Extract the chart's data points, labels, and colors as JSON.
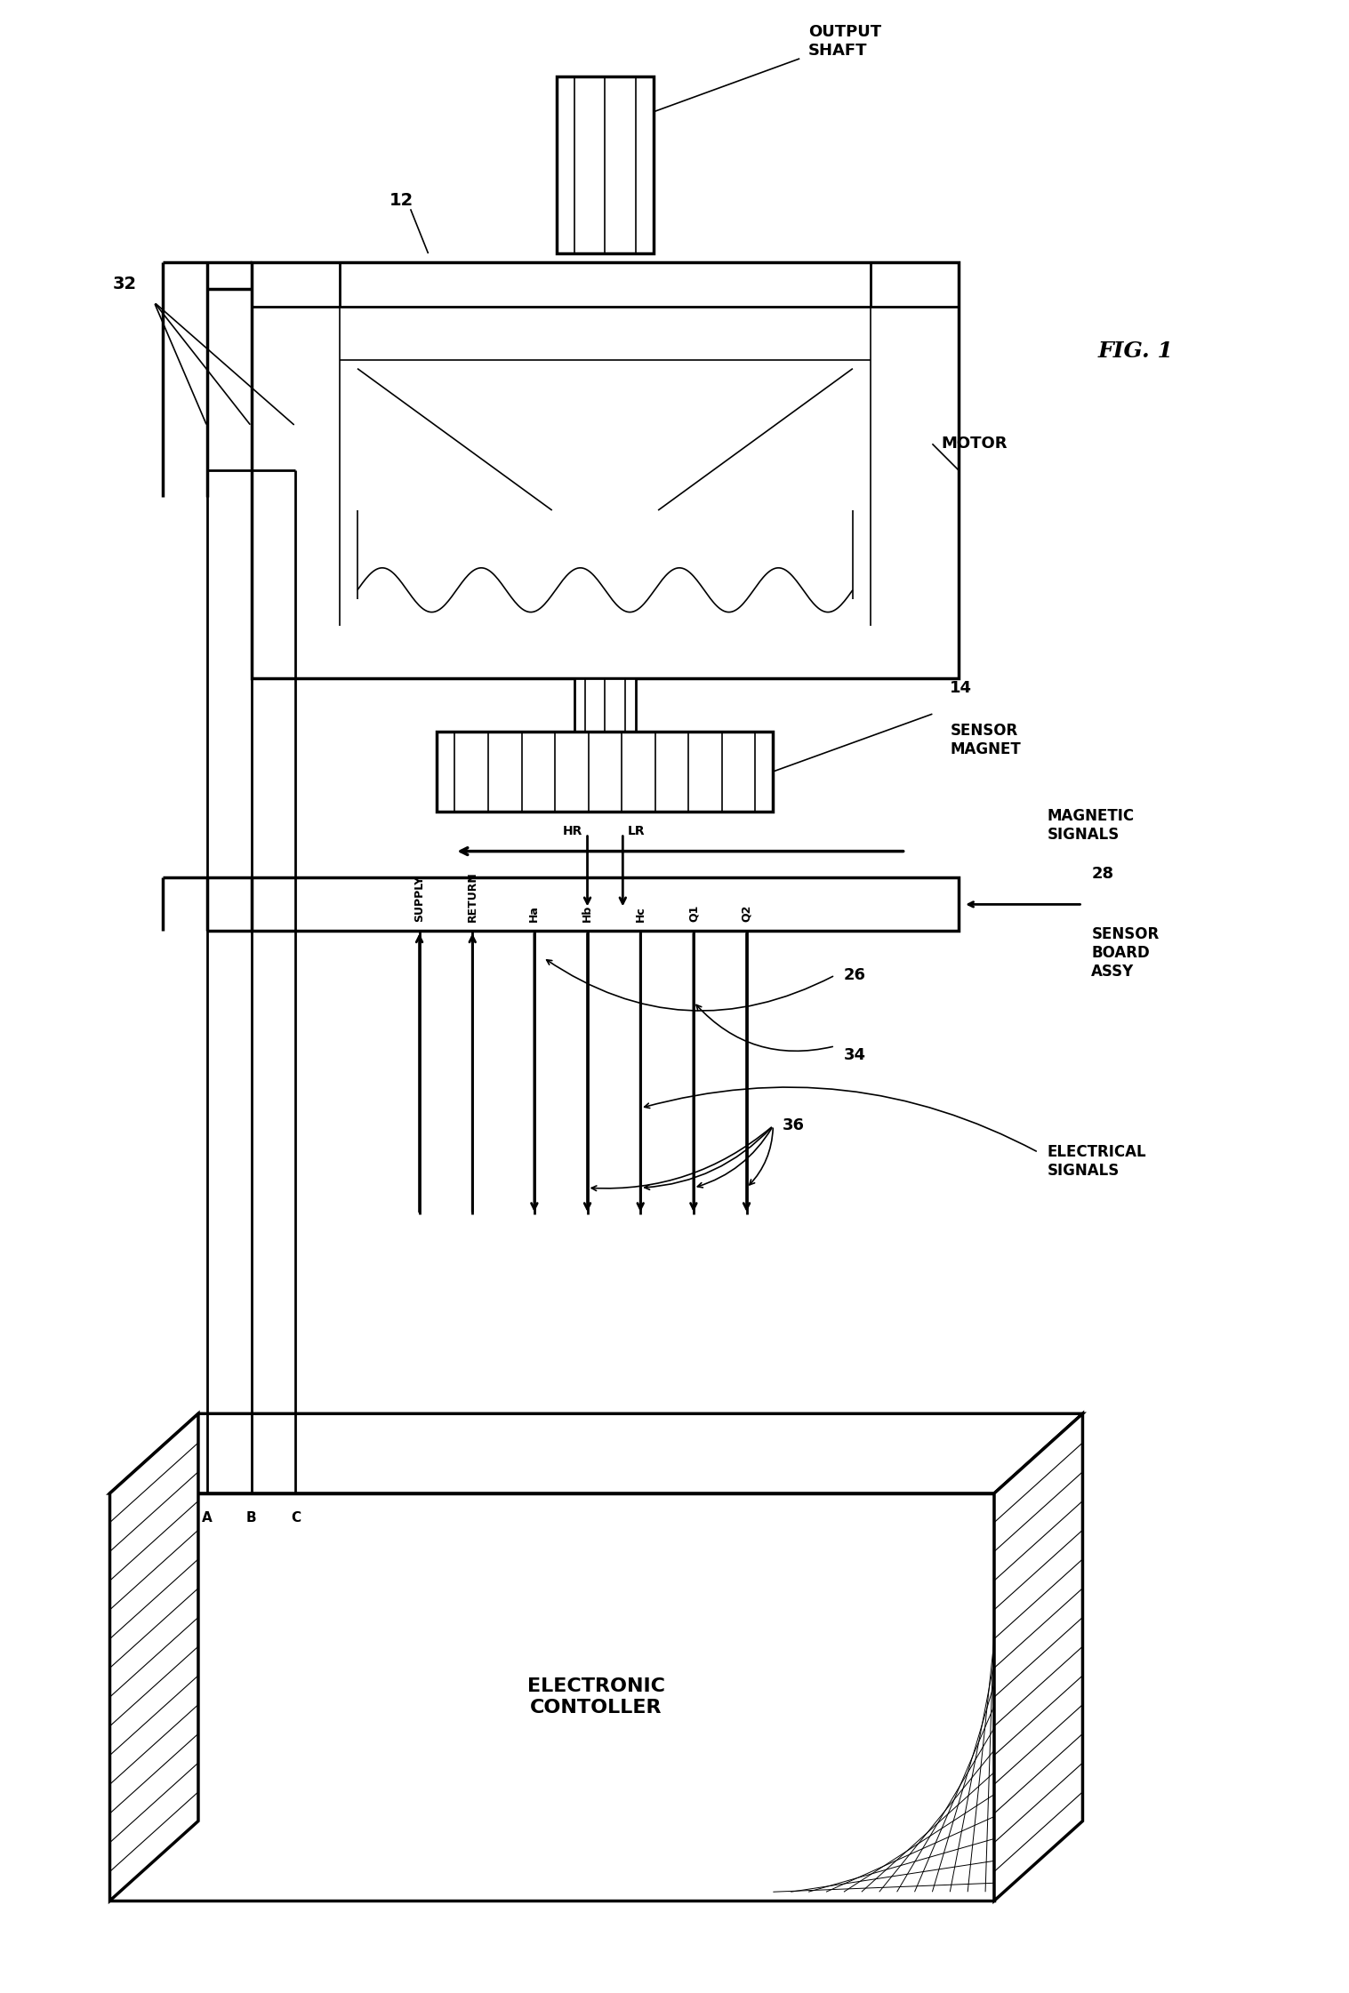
{
  "bg_color": "#ffffff",
  "line_color": "#000000",
  "fig_width": 15.17,
  "fig_height": 22.42,
  "title": "FIG. 1",
  "labels": {
    "output_shaft": "OUTPUT\nSHAFT",
    "motor": "MOTOR",
    "sensor_magnet": "SENSOR\nMAGNET",
    "magnetic_signals": "MAGNETIC\nSIGNALS",
    "sensor_board_assy": "SENSOR\nBOARD\nASSY",
    "electrical_signals": "ELECTRICAL\nSIGNALS",
    "electronic_controller": "ELECTRONIC\nCONTOLLER",
    "supply": "SUPPLY",
    "return_": "RETURN",
    "ref_12": "12",
    "ref_14": "14",
    "ref_26": "26",
    "ref_28": "28",
    "ref_32": "32",
    "ref_34": "34",
    "ref_36": "36",
    "hr": "HR",
    "lr": "LR",
    "ha": "Ha",
    "hb": "Hb",
    "hc": "Hc",
    "q1": "Q1",
    "q2": "Q2",
    "a": "A",
    "b": "B",
    "c": "C"
  }
}
